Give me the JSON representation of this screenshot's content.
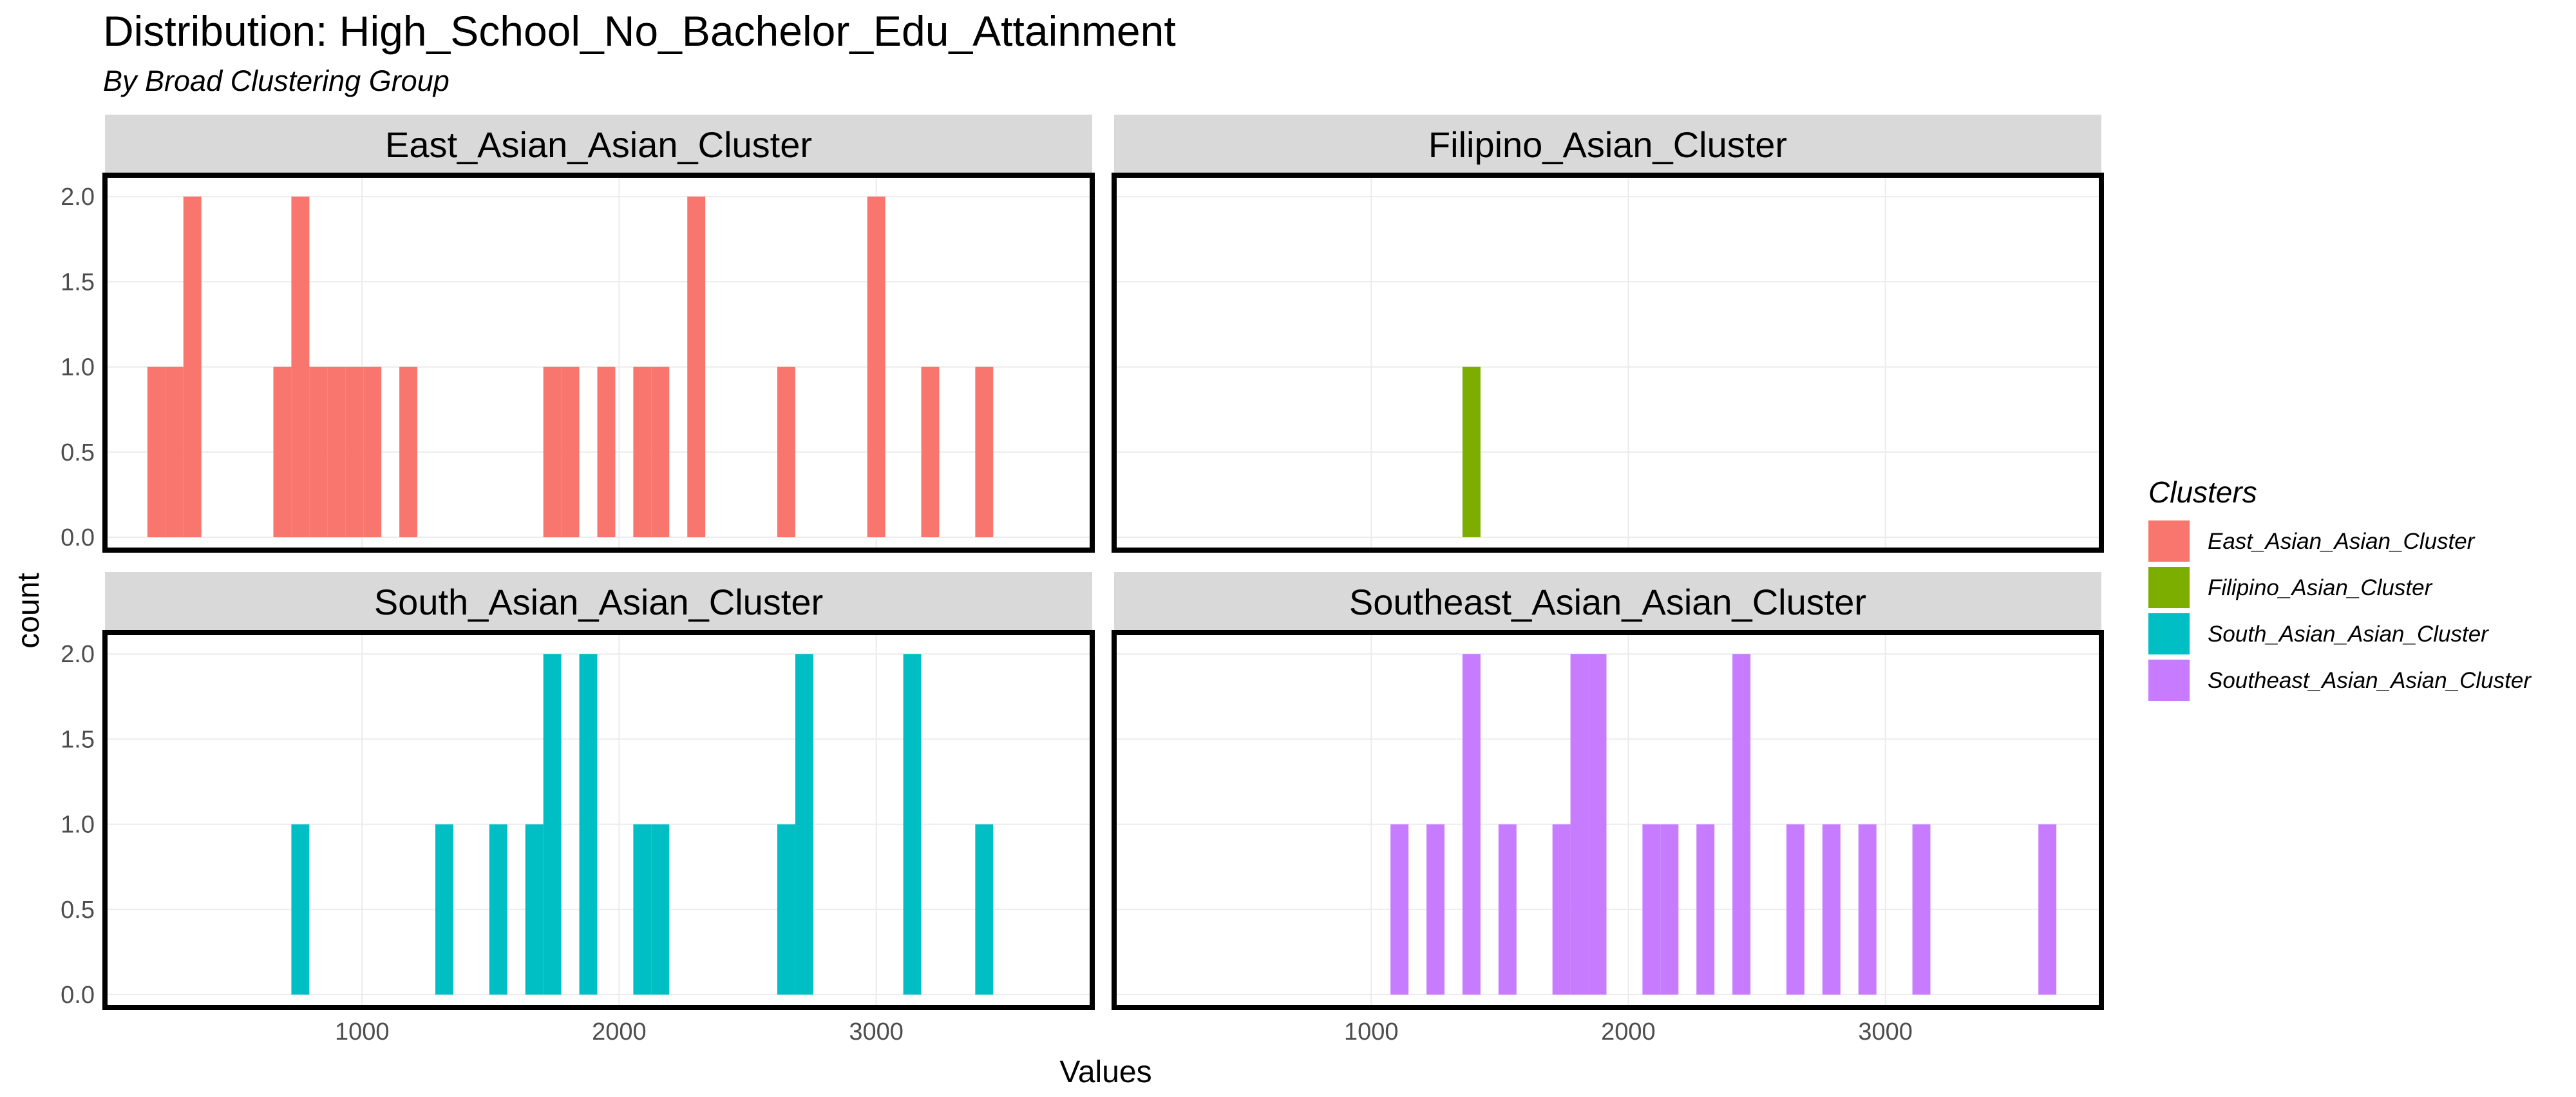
{
  "title": "Distribution: High_School_No_Bachelor_Edu_Attainment",
  "subtitle": "By Broad Clustering Group",
  "chart_data": {
    "type": "bar",
    "subtype": "faceted-histogram",
    "xlabel": "Values",
    "ylabel": "count",
    "xlim": [
      0,
      3840
    ],
    "ylim": [
      0,
      2.05
    ],
    "x_ticks": [
      1000,
      2000,
      3000
    ],
    "y_ticks": [
      0.0,
      0.5,
      1.0,
      1.5,
      2.0
    ],
    "y_tick_labels": [
      "0.0",
      "0.5",
      "1.0",
      "1.5",
      "2.0"
    ],
    "bin_width": 70,
    "grid": true,
    "legend": {
      "title": "Clusters",
      "placement": "right",
      "entries": [
        "East_Asian_Asian_Cluster",
        "Filipino_Asian_Cluster",
        "South_Asian_Asian_Cluster",
        "Southeast_Asian_Asian_Cluster"
      ]
    },
    "facets": [
      {
        "name": "East_Asian_Asian_Cluster",
        "color": "#F8766D",
        "bins": [
          {
            "x": 200,
            "count": 1
          },
          {
            "x": 270,
            "count": 1
          },
          {
            "x": 340,
            "count": 2
          },
          {
            "x": 690,
            "count": 1
          },
          {
            "x": 760,
            "count": 2
          },
          {
            "x": 830,
            "count": 1
          },
          {
            "x": 900,
            "count": 1
          },
          {
            "x": 970,
            "count": 1
          },
          {
            "x": 1040,
            "count": 1
          },
          {
            "x": 1180,
            "count": 1
          },
          {
            "x": 1740,
            "count": 1
          },
          {
            "x": 1810,
            "count": 1
          },
          {
            "x": 1950,
            "count": 1
          },
          {
            "x": 2090,
            "count": 1
          },
          {
            "x": 2160,
            "count": 1
          },
          {
            "x": 2300,
            "count": 2
          },
          {
            "x": 2650,
            "count": 1
          },
          {
            "x": 3000,
            "count": 2
          },
          {
            "x": 3210,
            "count": 1
          },
          {
            "x": 3420,
            "count": 1
          }
        ]
      },
      {
        "name": "Filipino_Asian_Cluster",
        "color": "#7CAE00",
        "bins": [
          {
            "x": 1390,
            "count": 1
          }
        ]
      },
      {
        "name": "South_Asian_Asian_Cluster",
        "color": "#00BFC4",
        "bins": [
          {
            "x": 760,
            "count": 1
          },
          {
            "x": 1320,
            "count": 1
          },
          {
            "x": 1530,
            "count": 1
          },
          {
            "x": 1670,
            "count": 1
          },
          {
            "x": 1740,
            "count": 2
          },
          {
            "x": 1880,
            "count": 2
          },
          {
            "x": 2090,
            "count": 1
          },
          {
            "x": 2160,
            "count": 1
          },
          {
            "x": 2650,
            "count": 1
          },
          {
            "x": 2720,
            "count": 2
          },
          {
            "x": 3140,
            "count": 2
          },
          {
            "x": 3420,
            "count": 1
          }
        ]
      },
      {
        "name": "Southeast_Asian_Asian_Cluster",
        "color": "#C77CFF",
        "bins": [
          {
            "x": 1110,
            "count": 1
          },
          {
            "x": 1250,
            "count": 1
          },
          {
            "x": 1390,
            "count": 2
          },
          {
            "x": 1530,
            "count": 1
          },
          {
            "x": 1740,
            "count": 1
          },
          {
            "x": 1810,
            "count": 2
          },
          {
            "x": 1880,
            "count": 2
          },
          {
            "x": 2090,
            "count": 1
          },
          {
            "x": 2160,
            "count": 1
          },
          {
            "x": 2300,
            "count": 1
          },
          {
            "x": 2440,
            "count": 2
          },
          {
            "x": 2650,
            "count": 1
          },
          {
            "x": 2790,
            "count": 1
          },
          {
            "x": 2930,
            "count": 1
          },
          {
            "x": 3140,
            "count": 1
          },
          {
            "x": 3630,
            "count": 1
          }
        ]
      }
    ]
  }
}
